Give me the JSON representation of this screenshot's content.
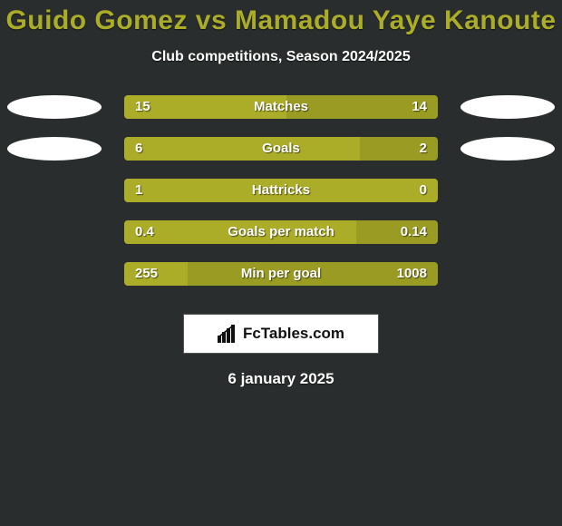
{
  "background_color": "#2a2d2d",
  "text_color": "#ffffff",
  "title": "Guido Gomez vs Mamadou Yaye Kanoute",
  "title_color": "#abad28",
  "title_fontsize": 30,
  "subtitle": "Club competitions, Season 2024/2025",
  "subtitle_fontsize": 16,
  "date": "6 january 2025",
  "bar_color_left": "#abad28",
  "bar_color_right": "#999b23",
  "bar_track_color": "#3a3d3d",
  "avatar_color": "#ffffff",
  "show_left_avatar_rows": [
    0,
    1
  ],
  "show_right_avatar_rows": [
    0,
    1
  ],
  "stats": [
    {
      "label": "Matches",
      "left_val": "15",
      "right_val": "14",
      "left_pct": 51.7,
      "right_pct": 48.3
    },
    {
      "label": "Goals",
      "left_val": "6",
      "right_val": "2",
      "left_pct": 75.0,
      "right_pct": 25.0
    },
    {
      "label": "Hattricks",
      "left_val": "1",
      "right_val": "0",
      "left_pct": 100.0,
      "right_pct": 0.0
    },
    {
      "label": "Goals per match",
      "left_val": "0.4",
      "right_val": "0.14",
      "left_pct": 74.0,
      "right_pct": 26.0
    },
    {
      "label": "Min per goal",
      "left_val": "255",
      "right_val": "1008",
      "left_pct": 20.2,
      "right_pct": 79.8
    }
  ],
  "attribution": "FcTables.com"
}
